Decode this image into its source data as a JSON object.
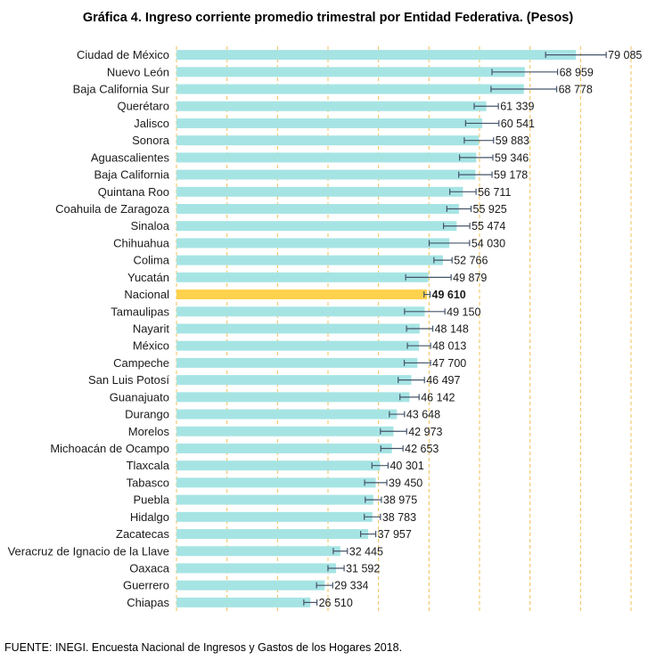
{
  "title": "Gráfica 4. Ingreso corriente promedio trimestral por Entidad Federativa. (Pesos)",
  "source": "FUENTE: INEGI. Encuesta Nacional de Ingresos y Gastos de los Hogares 2018.",
  "colors": {
    "bar": "#a6e4e4",
    "highlight": "#ffd24d",
    "errorbar": "#44546a",
    "grid": "#f2c055"
  },
  "chart_data": {
    "type": "bar",
    "orientation": "horizontal",
    "title": "Gráfica 4. Ingreso corriente promedio trimestral por Entidad Federativa. (Pesos)",
    "xlabel": "",
    "ylabel": "",
    "xlim": [
      0,
      90000
    ],
    "gridlines": "vertical, dashed",
    "highlight_category": "Nacional",
    "categories": [
      "Ciudad de México",
      "Nuevo León",
      "Baja California Sur",
      "Querétaro",
      "Jalisco",
      "Sonora",
      "Aguascalientes",
      "Baja California",
      "Quintana Roo",
      "Coahuila de Zaragoza",
      "Sinaloa",
      "Chihuahua",
      "Colima",
      "Yucatán",
      "Nacional",
      "Tamaulipas",
      "Nayarit",
      "México",
      "Campeche",
      "San Luis Potosí",
      "Guanajuato",
      "Durango",
      "Morelos",
      "Michoacán de Ocampo",
      "Tlaxcala",
      "Tabasco",
      "Puebla",
      "Hidalgo",
      "Zacatecas",
      "Veracruz de Ignacio de la Llave",
      "Oaxaca",
      "Guerrero",
      "Chiapas"
    ],
    "values": [
      79085,
      68959,
      68778,
      61339,
      60541,
      59883,
      59346,
      59178,
      56711,
      55925,
      55474,
      54030,
      52766,
      49879,
      49610,
      49150,
      48148,
      48013,
      47700,
      46497,
      46142,
      43648,
      42973,
      42653,
      40301,
      39450,
      38975,
      38783,
      37957,
      32445,
      31592,
      29334,
      26510
    ],
    "value_labels": [
      "79 085",
      "68 959",
      "68 778",
      "61 339",
      "60 541",
      "59 883",
      "59 346",
      "59 178",
      "56 711",
      "55 925",
      "55 474",
      "54 030",
      "52 766",
      "49 879",
      "49 610",
      "49 150",
      "48 148",
      "48 013",
      "47 700",
      "46 497",
      "46 142",
      "43 648",
      "42 973",
      "42 653",
      "40 301",
      "39 450",
      "38 975",
      "38 783",
      "37 957",
      "32 445",
      "31 592",
      "29 334",
      "26 510"
    ],
    "error_margin": [
      6000,
      6500,
      6500,
      2400,
      3300,
      2900,
      3300,
      3300,
      2600,
      2400,
      2600,
      4000,
      1800,
      4500,
      600,
      4000,
      2600,
      2300,
      2600,
      2600,
      1900,
      1500,
      2600,
      2200,
      1600,
      2200,
      1600,
      1600,
      1500,
      1400,
      1600,
      1600,
      1300
    ]
  }
}
